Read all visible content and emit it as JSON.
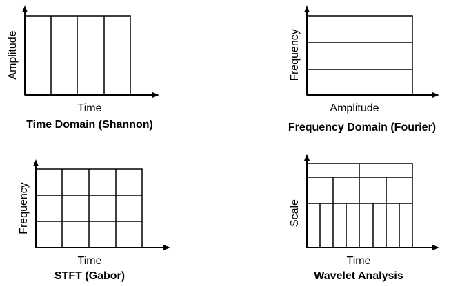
{
  "panels": [
    {
      "y_label": "Amplitude",
      "x_label": "Time",
      "title": "Time Domain (Shannon)"
    },
    {
      "y_label": "Frequency",
      "x_label": "Amplitude",
      "title": "Frequency Domain (Fourier)"
    },
    {
      "y_label": "Frequency",
      "x_label": "Time",
      "title": "STFT (Gabor)"
    },
    {
      "y_label": "Scale",
      "x_label": "Time",
      "title": "Wavelet Analysis"
    }
  ]
}
